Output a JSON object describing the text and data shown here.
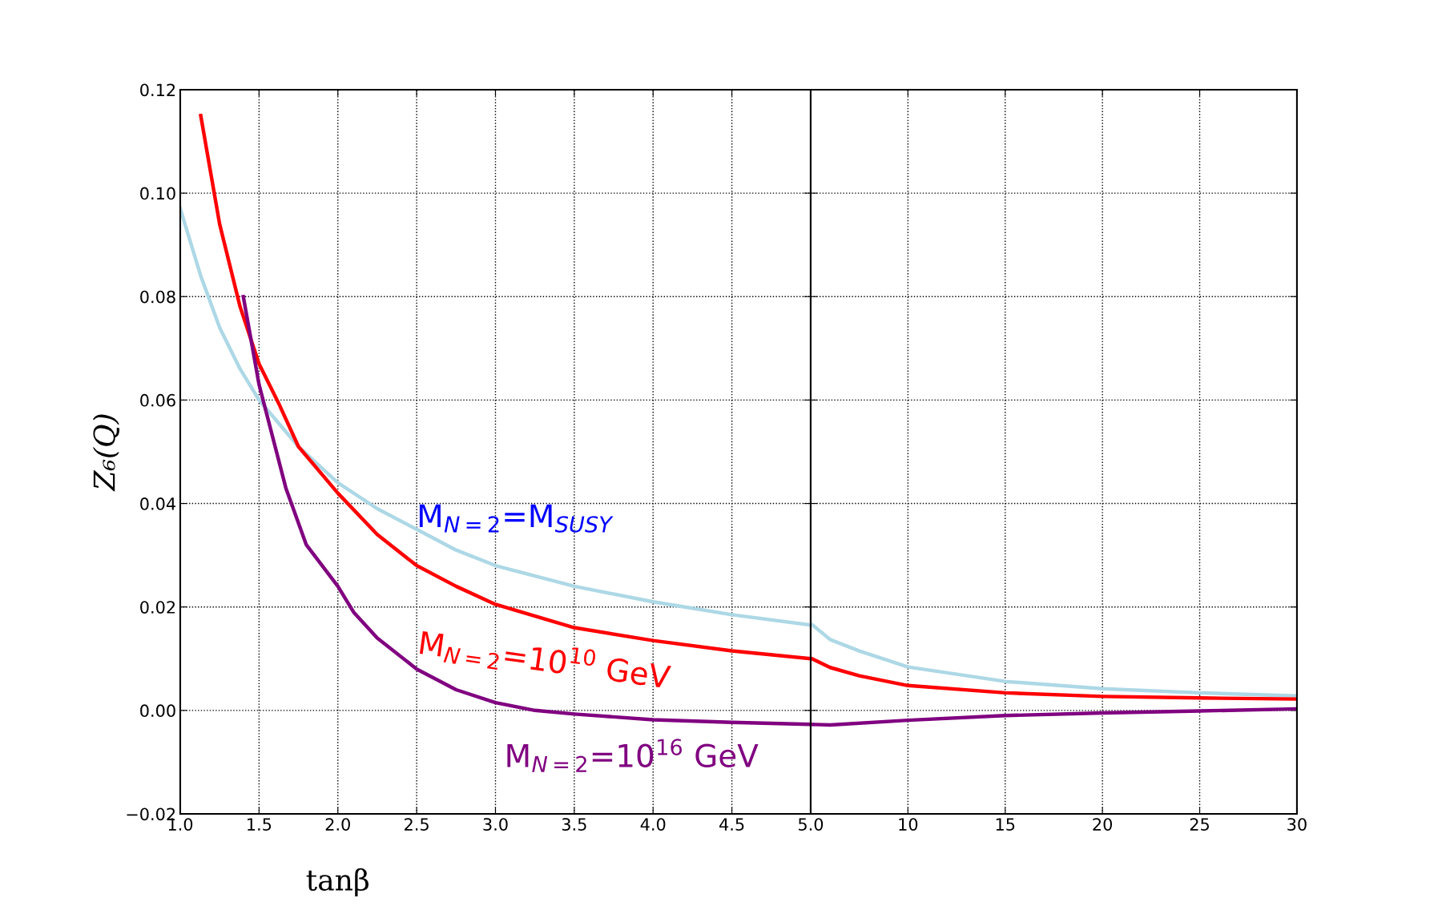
{
  "chart_data": [
    {
      "type": "line",
      "xlabel": "tanβ",
      "ylabel": "Z₆(Q)",
      "xlim": [
        1.0,
        5.0
      ],
      "ylim": [
        -0.02,
        0.12
      ],
      "xticks": [
        {
          "value": 1.0,
          "label": "1.0"
        },
        {
          "value": 1.5,
          "label": "1.5"
        },
        {
          "value": 2.0,
          "label": "2.0"
        },
        {
          "value": 2.5,
          "label": "2.5"
        },
        {
          "value": 3.0,
          "label": "3.0"
        },
        {
          "value": 3.5,
          "label": "3.5"
        },
        {
          "value": 4.0,
          "label": "4.0"
        },
        {
          "value": 4.5,
          "label": "4.5"
        },
        {
          "value": 5.0,
          "label": "5.0"
        }
      ],
      "yticks": [
        {
          "value": -0.02,
          "label": "−0.02"
        },
        {
          "value": 0.0,
          "label": "0.00"
        },
        {
          "value": 0.02,
          "label": "0.02"
        },
        {
          "value": 0.04,
          "label": "0.04"
        },
        {
          "value": 0.06,
          "label": "0.06"
        },
        {
          "value": 0.08,
          "label": "0.08"
        },
        {
          "value": 0.1,
          "label": "0.10"
        },
        {
          "value": 0.12,
          "label": "0.12"
        }
      ],
      "grid": true,
      "legend": false,
      "series": [
        {
          "name": "M$_{N=2}$=M$_{SUSY}$",
          "color": "#add8e6",
          "x": [
            1.0,
            1.13,
            1.25,
            1.38,
            1.5,
            1.75,
            2.0,
            2.25,
            2.5,
            2.75,
            3.0,
            3.5,
            4.0,
            4.5,
            5.0
          ],
          "values": [
            0.097,
            0.084,
            0.074,
            0.066,
            0.06,
            0.051,
            0.044,
            0.039,
            0.035,
            0.031,
            0.028,
            0.024,
            0.021,
            0.0185,
            0.0165
          ]
        },
        {
          "name": "M$_{N=2}$=10$^{10}$ GeV",
          "color": "#ff0000",
          "x": [
            1.13,
            1.25,
            1.38,
            1.5,
            1.63,
            1.75,
            2.0,
            2.25,
            2.5,
            2.75,
            3.0,
            3.5,
            4.0,
            4.5,
            5.0
          ],
          "values": [
            0.115,
            0.094,
            0.078,
            0.067,
            0.059,
            0.051,
            0.042,
            0.034,
            0.028,
            0.024,
            0.0205,
            0.016,
            0.0135,
            0.0115,
            0.01
          ]
        },
        {
          "name": "M$_{N=2}$=10$^{16}$ GeV",
          "color": "#800080",
          "x": [
            1.4,
            1.5,
            1.67,
            1.8,
            2.0,
            2.1,
            2.25,
            2.5,
            2.75,
            3.0,
            3.25,
            3.5,
            4.0,
            4.5,
            5.0
          ],
          "values": [
            0.08,
            0.063,
            0.043,
            0.032,
            0.024,
            0.019,
            0.014,
            0.008,
            0.004,
            0.0015,
            0.0,
            -0.0007,
            -0.0018,
            -0.0023,
            -0.0027
          ]
        }
      ]
    },
    {
      "type": "line",
      "xlim": [
        5.0,
        30.0
      ],
      "ylim": [
        -0.02,
        0.12
      ],
      "xticks": [
        10,
        15,
        20,
        25,
        30
      ],
      "yticks": [
        -0.02,
        0.0,
        0.02,
        0.04,
        0.06,
        0.08,
        0.1,
        0.12
      ],
      "tick_labels": "x",
      "grid": true,
      "legend": false,
      "series": [
        {
          "color": "#add8e6",
          "x": [
            5.0,
            6.0,
            7.5,
            10.0,
            15.0,
            20.0,
            25.0,
            30.0
          ],
          "values": [
            0.0168,
            0.0137,
            0.0115,
            0.0084,
            0.0056,
            0.0042,
            0.0034,
            0.0028
          ]
        },
        {
          "color": "#ff0000",
          "x": [
            5.0,
            6.0,
            7.5,
            10.0,
            15.0,
            20.0,
            25.0,
            30.0
          ],
          "values": [
            0.0101,
            0.0083,
            0.0067,
            0.0048,
            0.0034,
            0.0027,
            0.0024,
            0.0022
          ]
        },
        {
          "color": "#800080",
          "x": [
            5.0,
            6.0,
            10.0,
            15.0,
            20.0,
            25.0,
            30.0
          ],
          "values": [
            -0.0027,
            -0.0028,
            -0.0019,
            -0.001,
            -0.0005,
            -0.0001,
            0.0003
          ]
        }
      ]
    }
  ]
}
